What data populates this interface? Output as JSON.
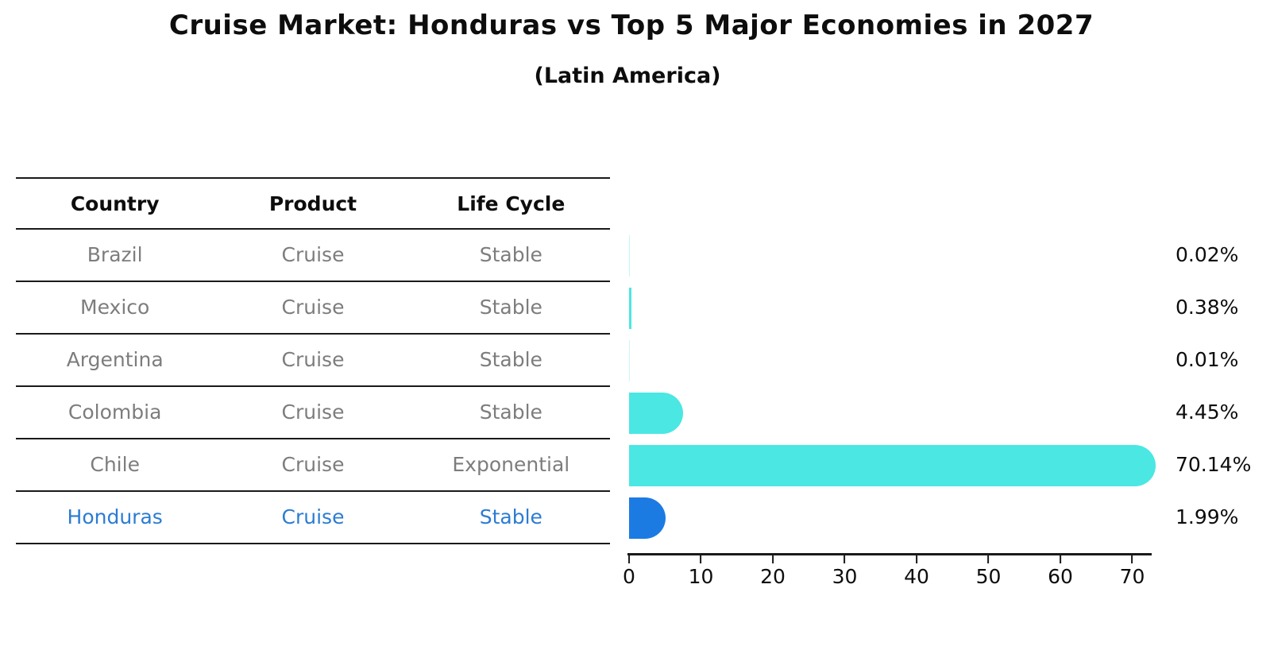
{
  "title": "Cruise Market: Honduras vs Top 5 Major Economies in 2027",
  "subtitle": "(Latin America)",
  "table": {
    "headers": [
      "Country",
      "Product",
      "Life Cycle"
    ],
    "rows": [
      {
        "country": "Brazil",
        "product": "Cruise",
        "life_cycle": "Stable",
        "highlighted": false
      },
      {
        "country": "Mexico",
        "product": "Cruise",
        "life_cycle": "Stable",
        "highlighted": false
      },
      {
        "country": "Argentina",
        "product": "Cruise",
        "life_cycle": "Stable",
        "highlighted": false
      },
      {
        "country": "Colombia",
        "product": "Cruise",
        "life_cycle": "Stable",
        "highlighted": false
      },
      {
        "country": "Chile",
        "product": "Cruise",
        "life_cycle": "Exponential",
        "highlighted": false
      },
      {
        "country": "Honduras",
        "product": "Cruise",
        "life_cycle": "Stable",
        "highlighted": true
      }
    ]
  },
  "chart_data": {
    "type": "bar",
    "orientation": "horizontal",
    "title": "Cruise Market: Honduras vs Top 5 Major Economies in 2027",
    "subtitle": "(Latin America)",
    "categories": [
      "Brazil",
      "Mexico",
      "Argentina",
      "Colombia",
      "Chile",
      "Honduras"
    ],
    "values": [
      0.02,
      0.38,
      0.01,
      4.45,
      70.14,
      1.99
    ],
    "value_labels": [
      "0.02%",
      "0.38%",
      "0.01%",
      "4.45%",
      "70.14%",
      "1.99%"
    ],
    "unit": "%",
    "x_ticks": [
      0,
      10,
      20,
      30,
      40,
      50,
      60,
      70
    ],
    "xlim": [
      0,
      73
    ],
    "grid": false,
    "legend": false,
    "bar_color": "#4AE7E3",
    "highlight_color": "#1C7BE3",
    "highlight_index": 5,
    "highlight_text_color": "#2B7CD3"
  },
  "colors": {
    "bar_cyan": "#4AE7E3",
    "bar_blue": "#1C7BE3",
    "highlight_text": "#2B7CD3",
    "row_text_gray": "#7D7D7D",
    "line_black": "#1A1A1A"
  }
}
